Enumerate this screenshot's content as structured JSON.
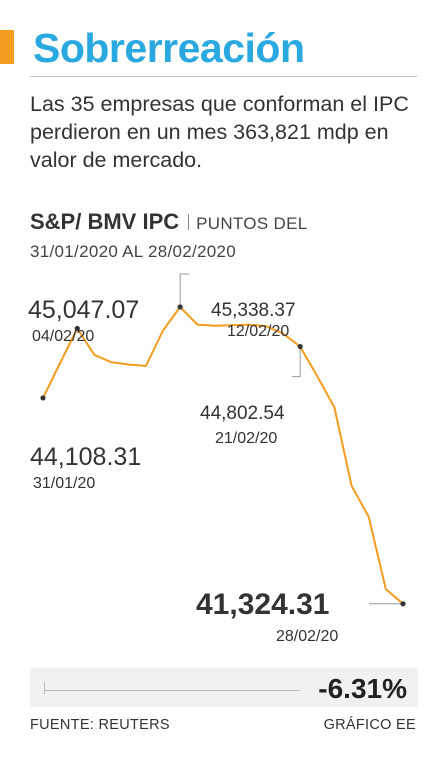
{
  "header": {
    "title": "Sobrerreación",
    "accent_color": "#f39c1f",
    "title_color": "#2aa8e0"
  },
  "subtitle": "Las 35 empresas que conforman el IPC perdieron en un mes 363,821 mdp en valor de mercado.",
  "chart_header": {
    "name": "S&P/ BMV IPC",
    "period_line1": "PUNTOS DEL",
    "period_line2": "31/01/2020 AL 28/02/2020"
  },
  "chart_data": {
    "type": "line",
    "title": "S&P/ BMV IPC",
    "line_color": "#f39c1f",
    "ylim": [
      41200,
      45500
    ],
    "series": [
      {
        "values": [
          44108.31,
          44580,
          45047.07,
          44690,
          44590,
          44560,
          44540,
          45020,
          45338.37,
          45100,
          45085,
          45090,
          45100,
          45080,
          44980,
          44802.54,
          44400,
          43980,
          42920,
          42500,
          41520,
          41324.31
        ]
      }
    ],
    "annotations": [
      {
        "value": "45,047.07",
        "date": "04/02/20"
      },
      {
        "value": "44,108.31",
        "date": "31/01/20"
      },
      {
        "value": "45,338.37",
        "date": "12/02/20"
      },
      {
        "value": "44,802.54",
        "date": "21/02/20"
      },
      {
        "value": "41,324.31",
        "date": "28/02/20"
      }
    ]
  },
  "variation": "-6.31%",
  "footer": {
    "source": "FUENTE: REUTERS",
    "credit": "GRÁFICO EE"
  }
}
